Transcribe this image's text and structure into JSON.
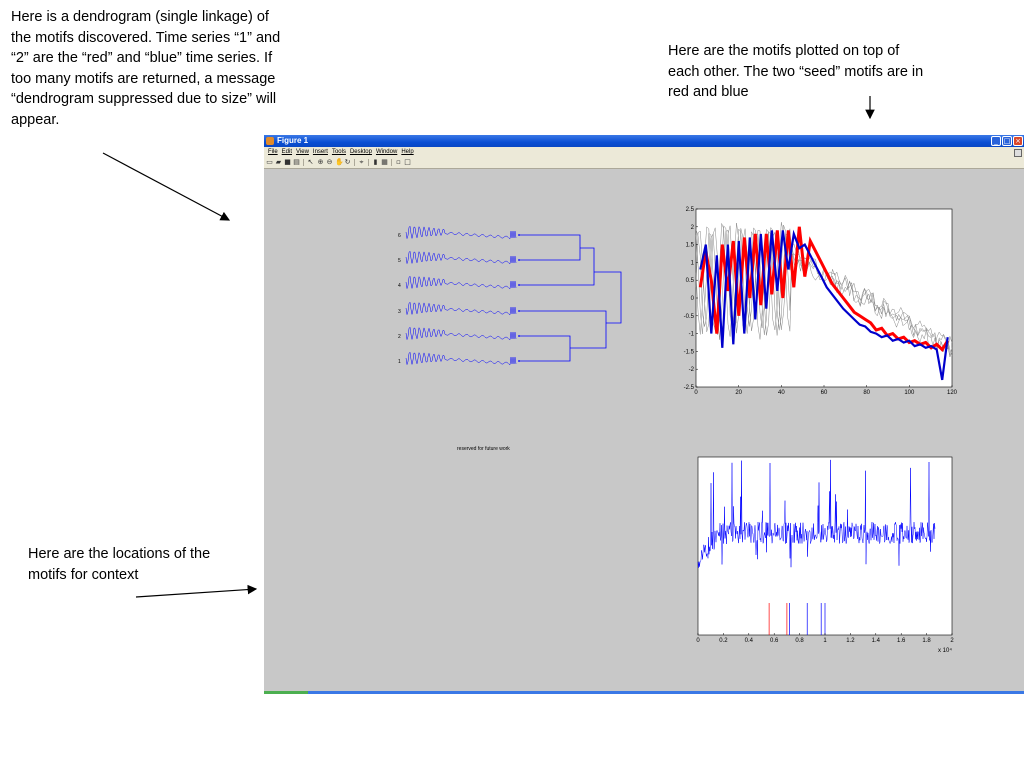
{
  "callouts": {
    "dendrogram": "Here is a dendrogram (single linkage) of the motifs discovered. Time series “1” and “2” are the “red” and “blue” time series. If too many motifs are returned, a message “dendrogram suppressed due to size” will appear.",
    "motifs": "Here are the motifs plotted on top of each other. The two “seed” motifs are in red and blue",
    "locations": "Here are the locations of the motifs for context"
  },
  "window": {
    "title": "Figure 1",
    "buttons": [
      "_",
      "□",
      "×"
    ],
    "menu": [
      "File",
      "Edit",
      "View",
      "Insert",
      "Tools",
      "Desktop",
      "Window",
      "Help"
    ],
    "toolbar_icons": [
      "new-file-icon",
      "open-file-icon",
      "save-icon",
      "print-icon",
      "pointer-icon",
      "zoom-in-icon",
      "zoom-out-icon",
      "pan-icon",
      "rotate-icon",
      "data-cursor-icon",
      "colorbar-icon",
      "legend-icon",
      "hide-plot-tools-icon",
      "show-plot-tools-icon"
    ]
  },
  "reserved_text": "reserved for future work",
  "colors": {
    "motif_blue": "#0000ff",
    "seed_red": "#ff0000",
    "seed_blue": "#0000cc",
    "figure_bg": "#c8c8c8",
    "titlebar_blue": "#0a4fd4"
  },
  "chart_data": [
    {
      "type": "dendrogram",
      "leaf_labels": [
        "6",
        "5",
        "4",
        "3",
        "2",
        "1"
      ],
      "linkage": "single"
    },
    {
      "type": "line",
      "xlim": [
        0,
        120
      ],
      "ylim": [
        -2.5,
        2.5
      ],
      "x_ticks": [
        "0",
        "20",
        "40",
        "60",
        "80",
        "100",
        "120"
      ],
      "y_ticks": [
        "2.5",
        "2",
        "1.5",
        "1",
        "0.5",
        "0",
        "-0.5",
        "-1",
        "-1.5",
        "-2",
        "-2.5"
      ],
      "series": [
        {
          "color": "red",
          "values": [
            0.3,
            1.3,
            0.5,
            -1.0,
            1.5,
            0.2,
            1.6,
            -0.5,
            1.7,
            0.0,
            1.8,
            -0.2,
            1.8,
            0.1,
            1.9,
            0.0,
            1.9,
            0.3,
            2.0,
            0.6,
            1.6,
            1.3,
            1.0,
            0.7,
            0.4,
            0.2,
            0.0,
            -0.2,
            -0.4,
            -0.5,
            -0.6,
            -0.7,
            -0.9,
            -0.85,
            -1.05,
            -1.0,
            -1.15,
            -1.1,
            -1.25,
            -1.2,
            -1.3,
            -1.25,
            -1.4,
            -1.3,
            -1.45,
            -1.2
          ]
        },
        {
          "color": "blue",
          "values": [
            0.8,
            1.5,
            -1.0,
            1.2,
            -1.4,
            1.5,
            -1.3,
            1.6,
            -1.0,
            1.7,
            -0.6,
            1.8,
            -0.3,
            1.9,
            0.2,
            1.9,
            0.8,
            1.8,
            1.4,
            1.5,
            1.2,
            0.9,
            0.6,
            0.3,
            0.1,
            -0.1,
            -0.3,
            -0.45,
            -0.6,
            -0.75,
            -0.8,
            -0.95,
            -1.0,
            -1.1,
            -1.05,
            -1.2,
            -1.15,
            -1.25,
            -1.2,
            -1.35,
            -1.3,
            -1.4,
            -1.35,
            -1.45,
            -2.3,
            -1.1
          ]
        }
      ]
    },
    {
      "type": "line",
      "xlim": [
        0,
        2
      ],
      "x_multiplier": "x 10⁴",
      "x_ticks": [
        "0",
        "0.2",
        "0.4",
        "0.6",
        "0.8",
        "1",
        "1.2",
        "1.4",
        "1.6",
        "1.8",
        "2"
      ],
      "markers": [
        {
          "x": 0.56,
          "color": "red"
        },
        {
          "x": 0.7,
          "color": "red"
        },
        {
          "x": 0.72,
          "color": "blue"
        },
        {
          "x": 0.86,
          "color": "blue"
        },
        {
          "x": 0.97,
          "color": "blue"
        },
        {
          "x": 1.0,
          "color": "blue"
        }
      ]
    }
  ]
}
